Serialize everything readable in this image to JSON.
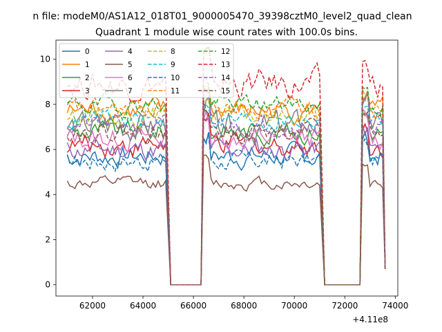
{
  "figure": {
    "suptitle": "n file: modeM0/AS1A12_018T01_9000005470_39398cztM0_level2_quad_clean",
    "title": "Quadrant 1 module wise count rates with 100.0s bins.",
    "offset_label": "+4.11e8"
  },
  "chart_data": {
    "type": "line",
    "title": "Quadrant 1 module wise count rates with 100.0s bins.",
    "xlabel": "",
    "ylabel": "",
    "x_offset": 411000000,
    "xlim": [
      60550,
      74100
    ],
    "ylim": [
      -0.5,
      10.85
    ],
    "xticks": [
      62000,
      64000,
      66000,
      68000,
      70000,
      72000,
      74000
    ],
    "yticks": [
      0,
      2,
      4,
      6,
      8,
      10
    ],
    "legend_location": "upper-left",
    "legend_columns": 4,
    "segments": [
      {
        "start": 61000,
        "end": 64900
      },
      {
        "start": 66400,
        "end": 71000
      },
      {
        "start": 72700,
        "end": 73600
      }
    ],
    "gaps": [
      [
        65100,
        66300
      ],
      [
        71200,
        72600
      ]
    ],
    "series": [
      {
        "name": "0",
        "color": "#1f77b4",
        "style": "solid",
        "level": 5.7,
        "noise": 0.35
      },
      {
        "name": "1",
        "color": "#ff7f0e",
        "style": "solid",
        "level": 7.7,
        "noise": 0.35
      },
      {
        "name": "2",
        "color": "#2ca02c",
        "style": "solid",
        "level": 6.8,
        "noise": 0.35
      },
      {
        "name": "3",
        "color": "#d62728",
        "style": "solid",
        "level": 6.2,
        "noise": 0.35
      },
      {
        "name": "4",
        "color": "#9467bd",
        "style": "solid",
        "level": 6.0,
        "noise": 0.35
      },
      {
        "name": "5",
        "color": "#8c564b",
        "style": "solid",
        "level": 4.5,
        "noise": 0.2
      },
      {
        "name": "6",
        "color": "#e377c2",
        "style": "solid",
        "level": 6.5,
        "noise": 0.35
      },
      {
        "name": "7",
        "color": "#7f7f7f",
        "style": "solid",
        "level": 7.0,
        "noise": 0.45
      },
      {
        "name": "8",
        "color": "#bcbd22",
        "style": "dashed",
        "level": 7.5,
        "noise": 0.3
      },
      {
        "name": "9",
        "color": "#17becf",
        "style": "dashed",
        "level": 7.3,
        "noise": 0.3
      },
      {
        "name": "10",
        "color": "#1f77b4",
        "style": "dashed",
        "level": 5.5,
        "noise": 0.3
      },
      {
        "name": "11",
        "color": "#ff7f0e",
        "style": "dashed",
        "level": 7.8,
        "noise": 0.3
      },
      {
        "name": "12",
        "color": "#2ca02c",
        "style": "dashed",
        "level": 8.0,
        "noise": 0.3
      },
      {
        "name": "13",
        "color": "#d62728",
        "style": "dashed",
        "level": 8.9,
        "noise": 0.45
      },
      {
        "name": "14",
        "color": "#9467bd",
        "style": "dashed",
        "level": 7.1,
        "noise": 0.3
      },
      {
        "name": "15",
        "color": "#8c564b",
        "style": "dashed",
        "level": 6.8,
        "noise": 0.3
      }
    ]
  }
}
